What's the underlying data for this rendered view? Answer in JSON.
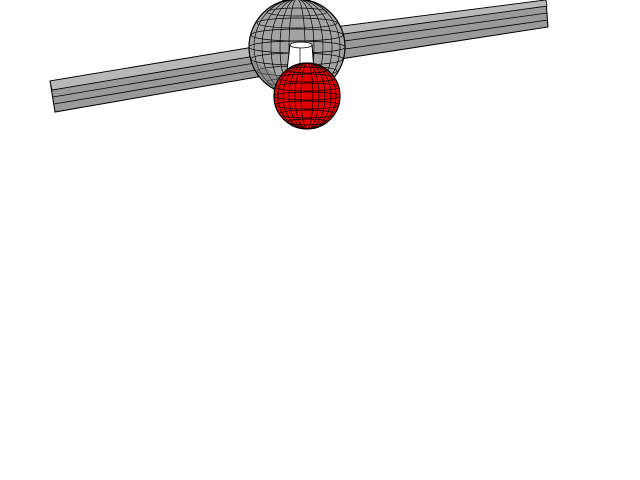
{
  "scene": {
    "background_color": "#ffffff",
    "objects": [
      {
        "name": "horizontal-bar",
        "shape": "long rectangular bar, tilted",
        "color": "#9a9a9a",
        "edge_color": "#000000"
      },
      {
        "name": "gray-sphere",
        "shape": "wireframe sphere (hub)",
        "color": "#a0a0a0",
        "edge_color": "#000000"
      },
      {
        "name": "white-connector",
        "shape": "short cylinder",
        "color": "#ffffff",
        "edge_color": "#000000"
      },
      {
        "name": "red-sphere",
        "shape": "wireframe sphere (ball)",
        "color": "#e00000",
        "edge_color": "#000000"
      }
    ]
  }
}
